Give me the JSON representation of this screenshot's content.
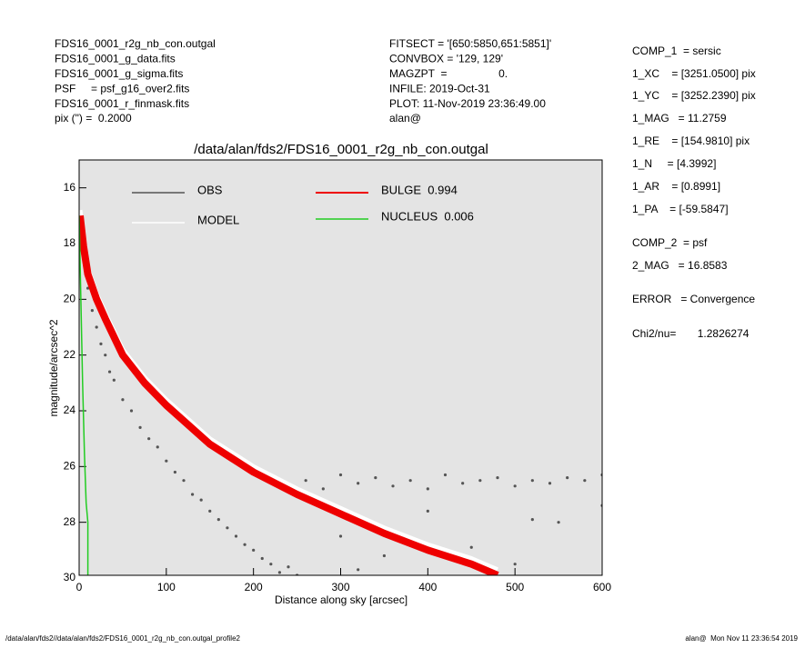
{
  "chart_data": {
    "type": "scatter",
    "title": "/data/alan/fds2/FDS16_0001_r2g_nb_con.outgal",
    "xlabel": "Distance along sky [arcsec]",
    "ylabel": "magnitude/arcsec^2",
    "xlim": [
      0,
      600
    ],
    "xticks": [
      0,
      100,
      200,
      300,
      400,
      500,
      600
    ],
    "ylim": [
      30,
      15
    ],
    "yticks": [
      16,
      18,
      20,
      22,
      24,
      26,
      28,
      30
    ],
    "series": [
      {
        "name": "OBS",
        "color": "#555555",
        "mode": "points",
        "x": [
          5,
          10,
          15,
          20,
          25,
          30,
          35,
          40,
          50,
          60,
          70,
          80,
          90,
          100,
          110,
          120,
          130,
          140,
          150,
          160,
          170,
          180,
          190,
          200,
          210,
          220,
          230,
          240,
          250,
          260,
          280,
          300,
          320,
          340,
          360,
          380,
          400,
          420,
          440,
          460,
          480,
          500,
          520,
          540,
          560,
          580,
          600,
          300,
          350,
          400,
          450,
          500,
          550,
          600,
          320,
          420,
          520
        ],
        "values": [
          18.5,
          19.6,
          20.4,
          21.0,
          21.6,
          22.0,
          22.6,
          22.9,
          23.6,
          24.0,
          24.6,
          25.0,
          25.3,
          25.8,
          26.2,
          26.5,
          27.0,
          27.2,
          27.6,
          27.9,
          28.2,
          28.5,
          28.8,
          29.0,
          29.3,
          29.5,
          29.8,
          29.6,
          29.9,
          26.5,
          26.8,
          26.3,
          26.6,
          26.4,
          26.7,
          26.5,
          26.8,
          26.3,
          26.6,
          26.5,
          26.4,
          26.7,
          26.5,
          26.6,
          26.4,
          26.5,
          26.3,
          28.5,
          29.2,
          27.6,
          28.9,
          29.5,
          28.0,
          27.4,
          29.7,
          29.0,
          27.9
        ]
      },
      {
        "name": "MODEL",
        "color": "#ffffff",
        "mode": "line",
        "x": [
          1,
          5,
          10,
          20,
          30,
          50,
          75,
          100,
          150,
          200,
          250,
          300,
          350,
          400,
          450,
          480
        ],
        "values": [
          16.8,
          17.9,
          18.9,
          19.8,
          20.5,
          21.8,
          22.8,
          23.6,
          25.0,
          26.0,
          26.8,
          27.5,
          28.2,
          28.8,
          29.3,
          29.7
        ]
      },
      {
        "name": "BULGE  0.994",
        "color": "#ee0000",
        "mode": "line",
        "x": [
          1,
          5,
          10,
          20,
          30,
          50,
          75,
          100,
          150,
          200,
          250,
          300,
          350,
          400,
          450,
          480
        ],
        "values": [
          17.0,
          18.1,
          19.1,
          20.0,
          20.7,
          22.0,
          23.0,
          23.8,
          25.2,
          26.2,
          27.0,
          27.7,
          28.4,
          29.0,
          29.5,
          29.9
        ]
      },
      {
        "name": "NUCLEUS  0.006",
        "color": "#22cc22",
        "mode": "line",
        "x": [
          0,
          2,
          4,
          6,
          8,
          10,
          10
        ],
        "values": [
          17.0,
          20.0,
          23.0,
          25.5,
          27.3,
          28.0,
          30.0
        ]
      }
    ]
  },
  "info_left": [
    "FDS16_0001_r2g_nb_con.outgal",
    "FDS16_0001_g_data.fits",
    "FDS16_0001_g_sigma.fits",
    "PSF     = psf_g16_over2.fits",
    "FDS16_0001_r_finmask.fits",
    "pix (\") =  0.2000"
  ],
  "info_mid": [
    "FITSECT = '[650:5850,651:5851]'",
    "CONVBOX = '129, 129'",
    "MAGZPT  =                 0.",
    "INFILE: 2019-Oct-31",
    "PLOT: 11-Nov-2019 23:36:49.00",
    "alan@"
  ],
  "info_right": [
    "COMP_1  = sersic",
    "1_XC    = [3251.0500] pix",
    "1_YC    = [3252.2390] pix",
    "1_MAG   = 11.2759",
    "1_RE    = [154.9810] pix",
    "1_N     = [4.3992]",
    "1_AR    = [0.8991]",
    "1_PA    = [-59.5847]",
    "COMP_2  = psf",
    "2_MAG   = 16.8583",
    "ERROR   = Convergence",
    "Chi2/nu=       1.2826274"
  ],
  "footer_left": "/data/alan/fds2//data/alan/fds2/FDS16_0001_r2g_nb_con.outgal_profile2",
  "footer_right": "alan@  Mon Nov 11 23:36:54 2019"
}
